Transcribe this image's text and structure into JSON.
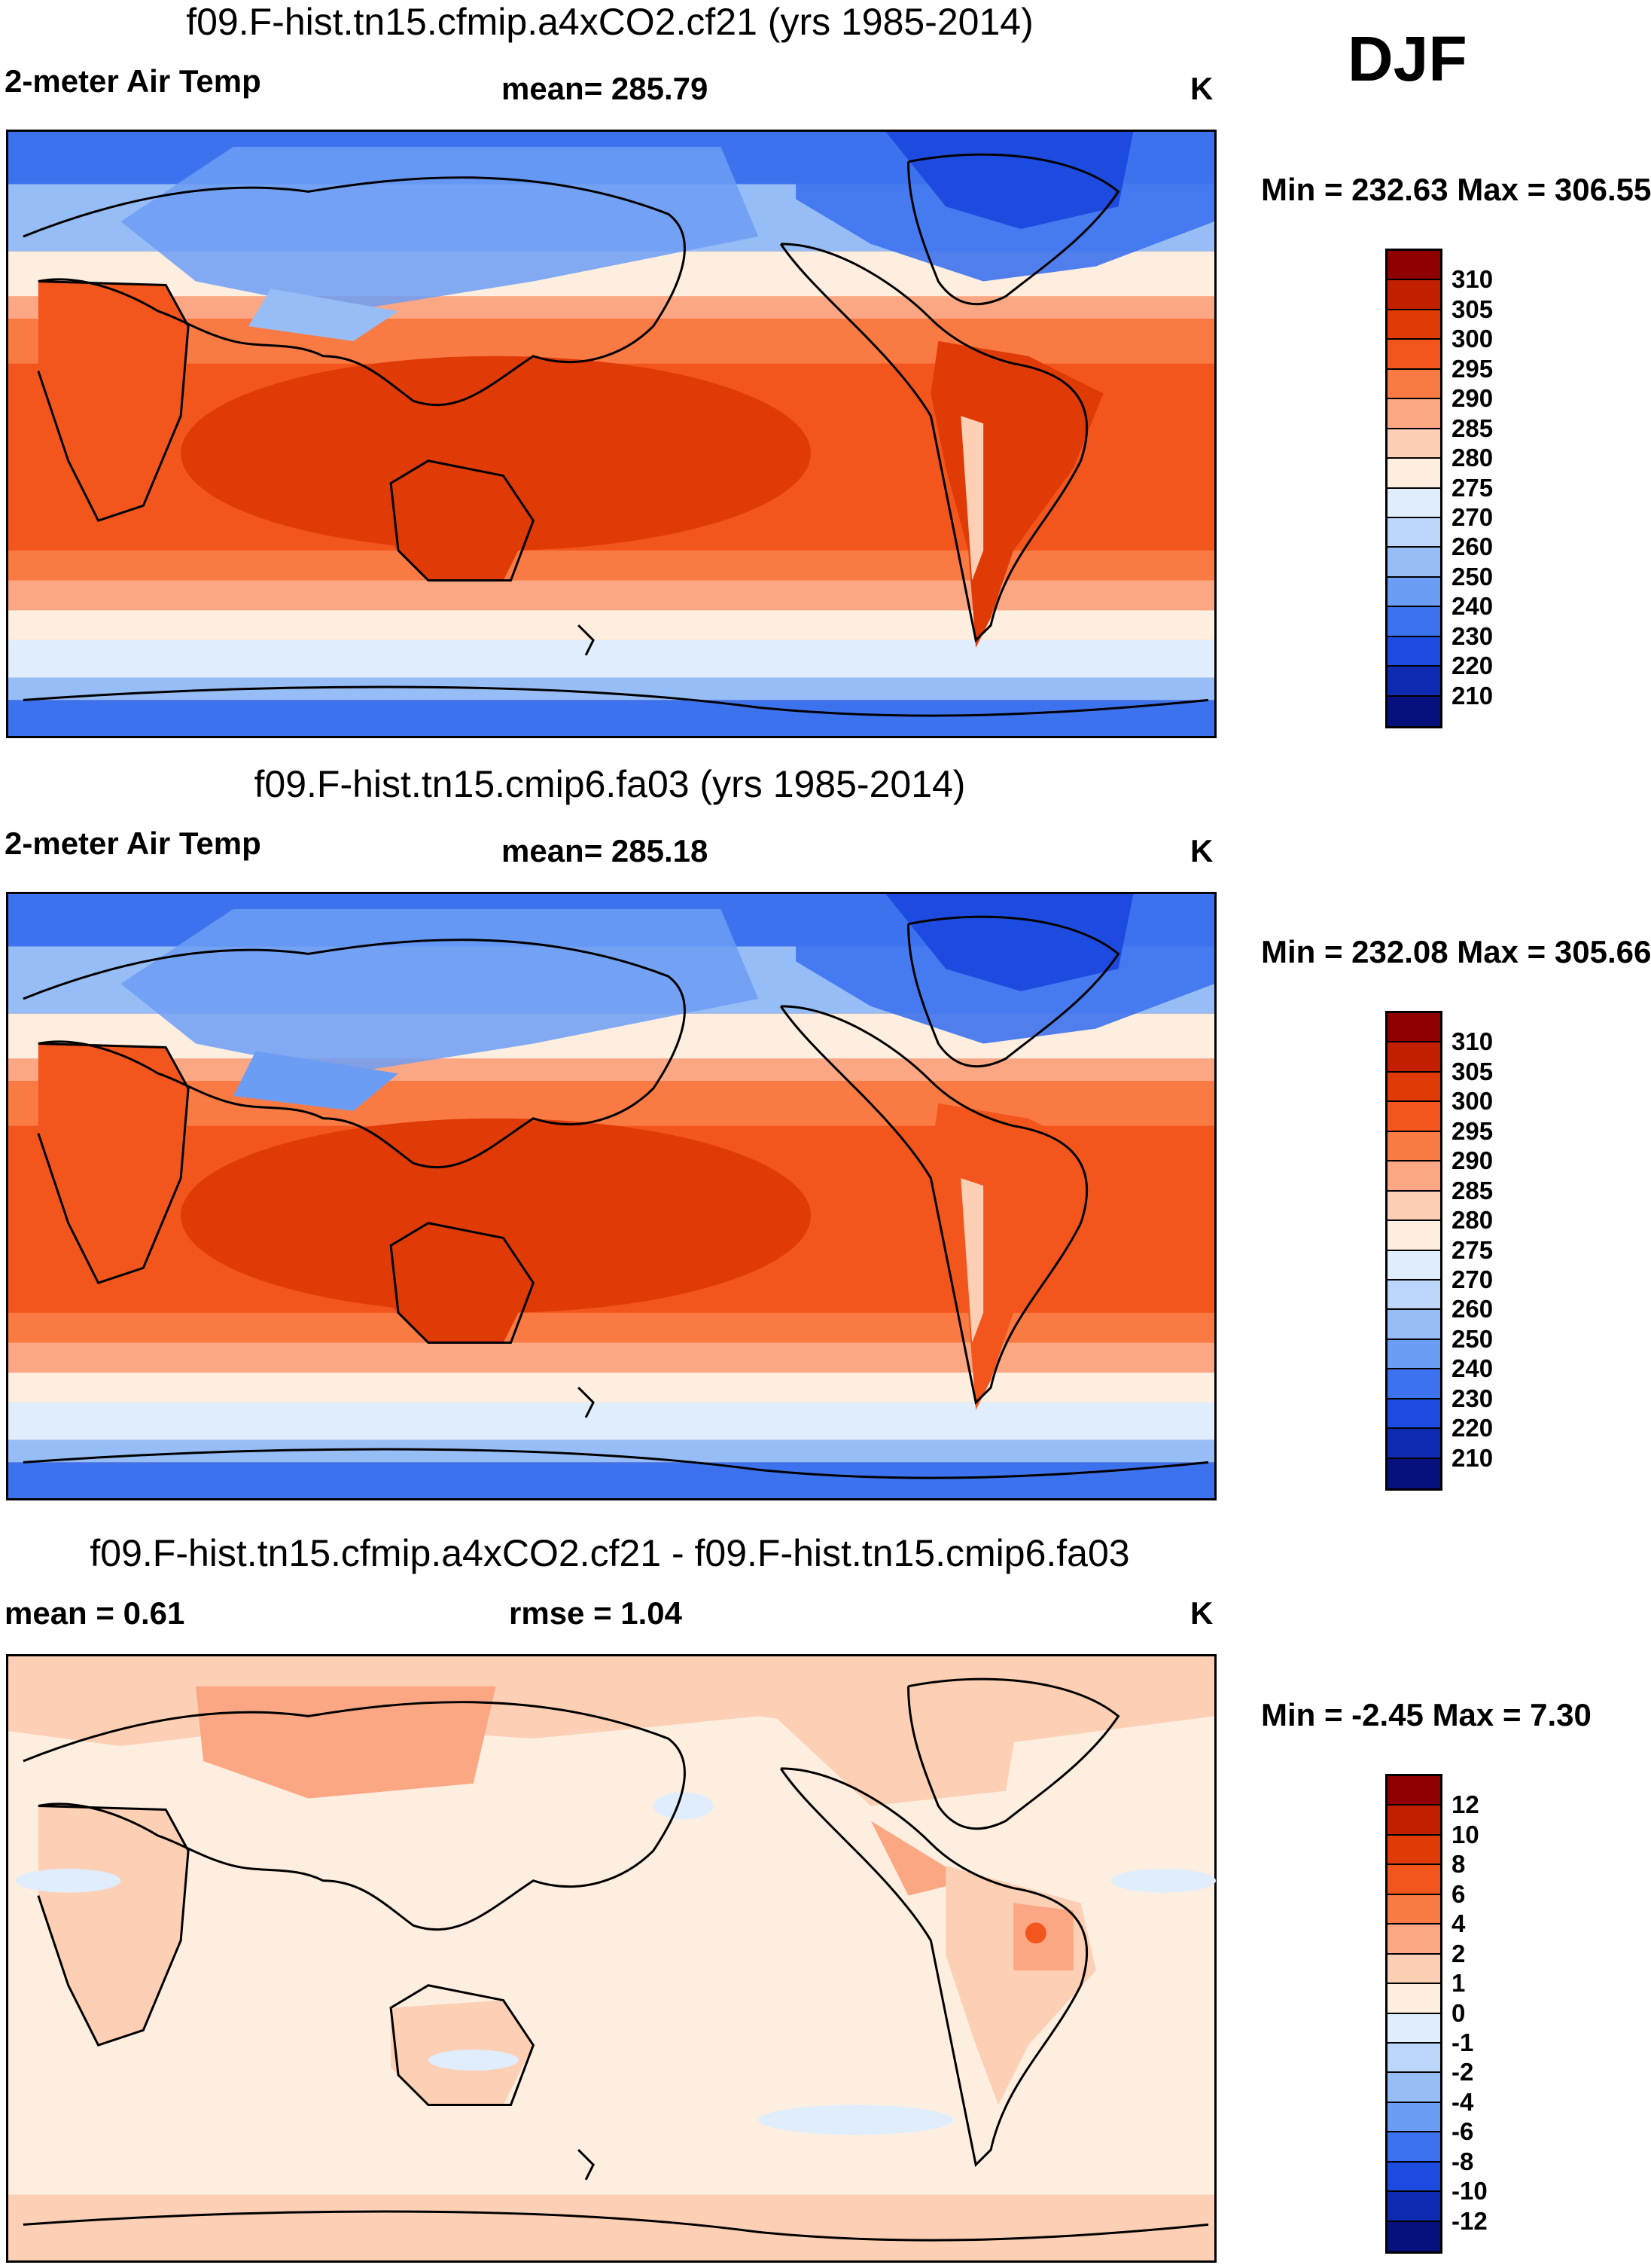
{
  "season": "DJF",
  "panels": [
    {
      "id": "model-a",
      "title": "f09.F-hist.tn15.cfmip.a4xCO2.cf21 (yrs 1985-2014)",
      "left_label": "2-meter Air Temp",
      "center_label": "mean= 285.79",
      "units": "K",
      "minmax": "Min = 232.63 Max = 306.55",
      "scale": "temperature"
    },
    {
      "id": "model-b",
      "title": "f09.F-hist.tn15.cmip6.fa03 (yrs 1985-2014)",
      "left_label": "2-meter Air Temp",
      "center_label": "mean= 285.18",
      "units": "K",
      "minmax": "Min = 232.08 Max = 305.66",
      "scale": "temperature"
    },
    {
      "id": "difference",
      "title": "f09.F-hist.tn15.cfmip.a4xCO2.cf21 - f09.F-hist.tn15.cmip6.fa03",
      "left_label": "mean =   0.61",
      "center_label": "rmse =   1.04",
      "units": "K",
      "minmax": "Min =  -2.45 Max =   7.30",
      "scale": "difference"
    }
  ],
  "colorbars": {
    "temperature": {
      "ticks": [
        "310",
        "305",
        "300",
        "295",
        "290",
        "285",
        "280",
        "275",
        "270",
        "260",
        "250",
        "240",
        "230",
        "220",
        "210"
      ],
      "colors": [
        "#8f0000",
        "#c21f00",
        "#e03a06",
        "#f2561d",
        "#fa7a44",
        "#fca784",
        "#fdcfb4",
        "#fdeee0",
        "#dfedfd",
        "#bcd6fb",
        "#97bdf7",
        "#6c9df4",
        "#3d72ee",
        "#1d4be0",
        "#0d2ab0",
        "#06117d"
      ]
    },
    "difference": {
      "ticks": [
        "12",
        "10",
        "8",
        "6",
        "4",
        "2",
        "1",
        "0",
        "-1",
        "-2",
        "-4",
        "-6",
        "-8",
        "-10",
        "-12"
      ],
      "colors": [
        "#8f0000",
        "#c21f00",
        "#e03a06",
        "#f2561d",
        "#fa7a44",
        "#fca784",
        "#fdcfb4",
        "#fdeee0",
        "#dfedfd",
        "#bcd6fb",
        "#97bdf7",
        "#6c9df4",
        "#3d72ee",
        "#1d4be0",
        "#0d2ab0",
        "#06117d"
      ]
    }
  }
}
